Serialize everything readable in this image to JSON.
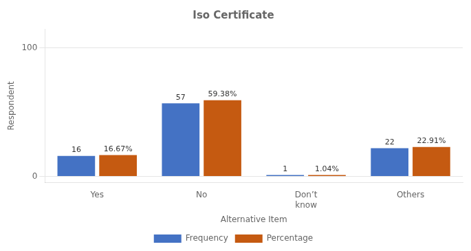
{
  "chart_data": {
    "type": "bar",
    "title": "Iso Certificate",
    "xlabel": "Alternative Item",
    "ylabel": "Respondent",
    "categories": [
      "Yes",
      "No",
      "Don’t\nknow",
      "Others"
    ],
    "series": [
      {
        "name": "Frequency",
        "color": "#4472C4",
        "values": [
          16,
          57,
          1,
          22
        ]
      },
      {
        "name": "Percentage",
        "color": "#C55A11",
        "values": [
          16.67,
          59.38,
          1.04,
          22.91
        ],
        "value_labels": [
          "16.67%",
          "59.38%",
          "1.04%",
          "22.91%"
        ]
      }
    ],
    "ylim": [
      -5,
      115
    ],
    "yticks": [
      0,
      100
    ],
    "grid": true,
    "legend": "bottom",
    "data_labels": true
  }
}
